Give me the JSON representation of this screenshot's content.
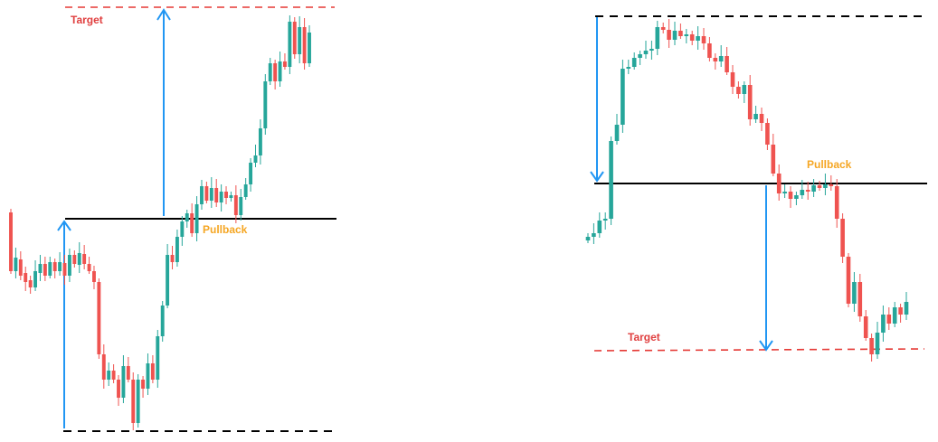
{
  "left_panel": {
    "target_label": "Target",
    "pullback_label": "Pullback"
  },
  "right_panel": {
    "target_label": "Target",
    "pullback_label": "Pullback"
  },
  "colors": {
    "bull": "#26a69a",
    "bear": "#ef5350",
    "target_line": "#e53935",
    "target_text": "#e04040",
    "pullback_text": "#f5a623",
    "arrow": "#2196f3",
    "level_line": "#000000"
  }
}
